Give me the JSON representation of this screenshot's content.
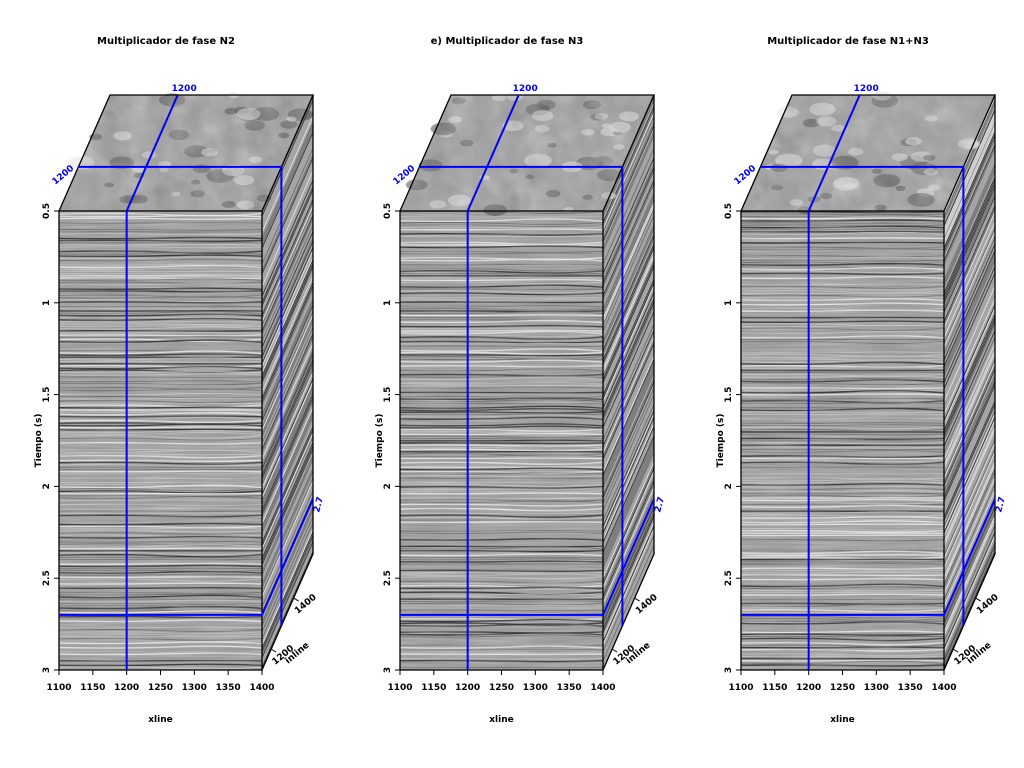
{
  "colors": {
    "slice_line": "#0000ff",
    "frame": "#000000",
    "background": "#ffffff"
  },
  "chart_data": [
    {
      "type": "heatmap",
      "title": "Multiplicador de fase N2",
      "xlabel": "xline",
      "ylabel": "Tiempo (s)",
      "depth_label": "inline",
      "xlim": [
        1100,
        1400
      ],
      "ylim": [
        0.5,
        3
      ],
      "x_ticks": [
        "1100",
        "1150",
        "1200",
        "1250",
        "1300",
        "1350",
        "1400"
      ],
      "y_ticks": [
        "0.5",
        "1",
        "1.5",
        "2",
        "2.5",
        "3"
      ],
      "depth_ticks": [
        "1200",
        "1400"
      ],
      "slice_labels": {
        "top_xline": "1200",
        "left_inline": "1200",
        "time": "2.7"
      },
      "slices": {
        "xline": 1200,
        "inline": 1200,
        "time": 2.7
      },
      "colormap": "grayscale seismic amplitude"
    },
    {
      "type": "heatmap",
      "title": "e) Multiplicador de fase N3",
      "xlabel": "xline",
      "ylabel": "Tiempo (s)",
      "depth_label": "inline",
      "xlim": [
        1100,
        1400
      ],
      "ylim": [
        0.5,
        3
      ],
      "x_ticks": [
        "1100",
        "1150",
        "1200",
        "1250",
        "1300",
        "1350",
        "1400"
      ],
      "y_ticks": [
        "0.5",
        "1",
        "1.5",
        "2",
        "2.5",
        "3"
      ],
      "depth_ticks": [
        "1200",
        "1400"
      ],
      "slice_labels": {
        "top_xline": "1200",
        "left_inline": "1200",
        "time": "2.7"
      },
      "slices": {
        "xline": 1200,
        "inline": 1200,
        "time": 2.7
      },
      "colormap": "grayscale seismic amplitude"
    },
    {
      "type": "heatmap",
      "title": "Multiplicador de fase N1+N3",
      "xlabel": "xline",
      "ylabel": "Tiempo (s)",
      "depth_label": "inline",
      "xlim": [
        1100,
        1400
      ],
      "ylim": [
        0.5,
        3
      ],
      "x_ticks": [
        "1100",
        "1150",
        "1200",
        "1250",
        "1300",
        "1350",
        "1400"
      ],
      "y_ticks": [
        "0.5",
        "1",
        "1.5",
        "2",
        "2.5",
        "3"
      ],
      "depth_ticks": [
        "1200",
        "1400"
      ],
      "slice_labels": {
        "top_xline": "1200",
        "left_inline": "1200",
        "time": "2.7"
      },
      "slices": {
        "xline": 1200,
        "inline": 1200,
        "time": 2.7
      },
      "colormap": "grayscale seismic amplitude"
    }
  ]
}
